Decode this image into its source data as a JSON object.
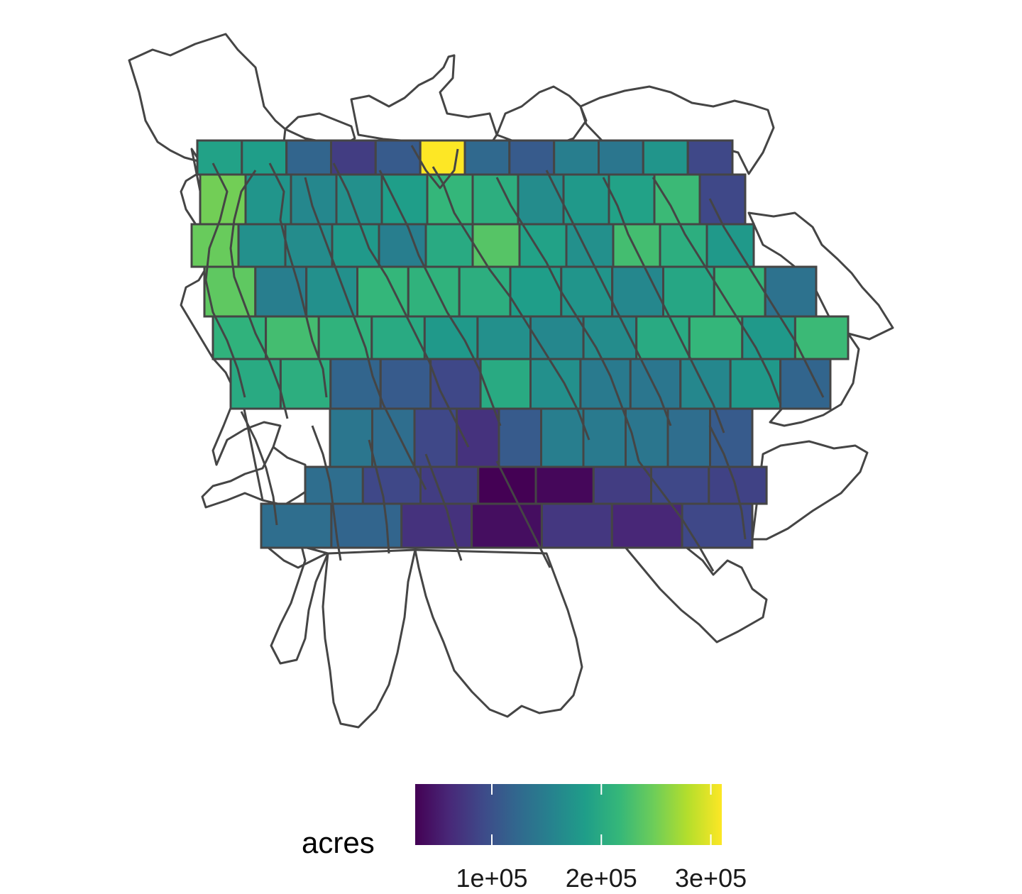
{
  "legend": {
    "title": "acres",
    "value_min": 30000,
    "value_max": 310000,
    "ticks": [
      {
        "value": 100000,
        "label": "1e+05"
      },
      {
        "value": 200000,
        "label": "2e+05"
      },
      {
        "value": 300000,
        "label": "3e+05"
      }
    ]
  },
  "colors": {
    "outline": "#454545",
    "viridis": [
      "#440154",
      "#482878",
      "#3E4A89",
      "#31688E",
      "#26828E",
      "#1F9E89",
      "#35B779",
      "#6DCD59",
      "#B4DE2C",
      "#FDE725"
    ]
  },
  "chart_data": {
    "type": "choropleth",
    "variable": "acres",
    "rows": [
      [
        190000,
        185000,
        120000,
        80000,
        110000,
        310000,
        125000,
        110000,
        150000,
        140000,
        175000,
        90000
      ],
      [
        250000,
        175000,
        160000,
        170000,
        185000,
        215000,
        205000,
        165000,
        180000,
        190000,
        220000,
        90000
      ],
      [
        245000,
        170000,
        165000,
        180000,
        150000,
        200000,
        235000,
        190000,
        170000,
        225000,
        205000,
        180000
      ],
      [
        240000,
        150000,
        170000,
        215000,
        210000,
        205000,
        185000,
        175000,
        160000,
        195000,
        215000,
        135000
      ],
      [
        210000,
        225000,
        210000,
        200000,
        180000,
        170000,
        160000,
        165000,
        200000,
        215000,
        180000,
        220000
      ],
      [
        200000,
        205000,
        120000,
        110000,
        90000,
        200000,
        170000,
        145000,
        140000,
        160000,
        180000,
        120000
      ],
      [
        140000,
        130000,
        90000,
        70000,
        110000,
        150000,
        145000,
        140000,
        130000,
        110000
      ],
      [
        130000,
        90000,
        80000,
        30000,
        35000,
        80000,
        90000,
        85000
      ],
      [
        130000,
        120000,
        70000,
        40000,
        75000,
        60000,
        90000
      ]
    ]
  }
}
